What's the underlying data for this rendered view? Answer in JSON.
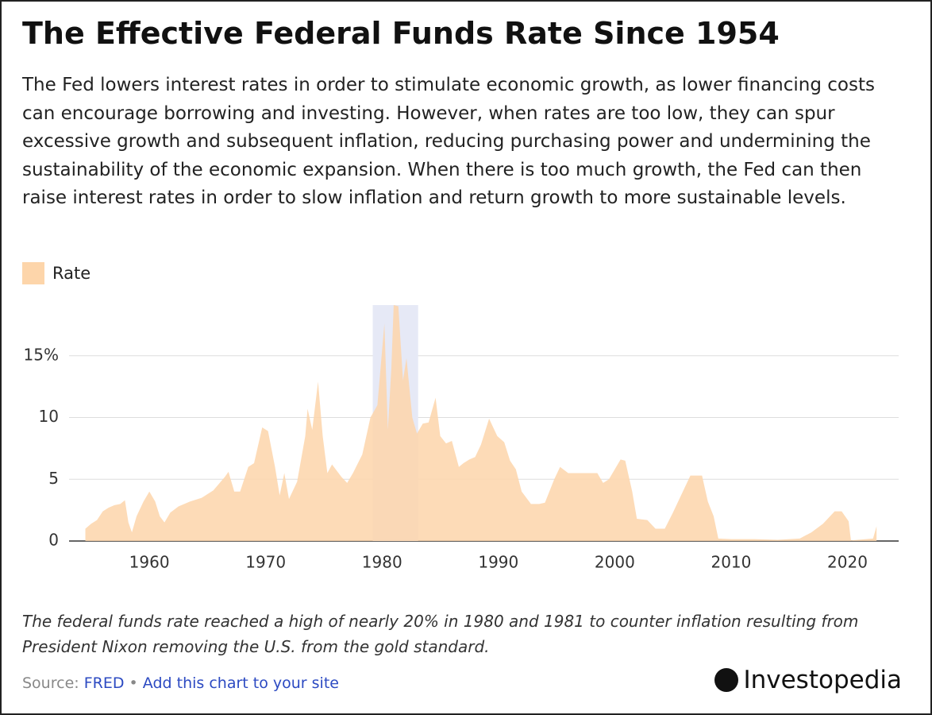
{
  "chart_data": {
    "type": "area",
    "title": "The Effective Federal Funds Rate Since 1954",
    "subtitle": "The Fed lowers interest rates in order to stimulate economic growth, as lower financing costs can encourage borrowing and investing. However, when rates are too low, they can spur excessive growth and subsequent inflation, reducing purchasing power and undermining the sustainability of the economic expansion. When there is too much growth, the Fed can then raise interest rates in order to slow inflation and return growth to more sustainable levels.",
    "note": "The federal funds rate reached a high of nearly 20% in 1980 and 1981 to counter inflation resulting from President Nixon removing the U.S. from the gold standard.",
    "x": [
      1954.5,
      1955.0,
      1955.5,
      1956.0,
      1956.5,
      1957.0,
      1957.5,
      1957.9,
      1958.2,
      1958.5,
      1958.9,
      1959.5,
      1960.0,
      1960.5,
      1960.9,
      1961.3,
      1961.8,
      1962.5,
      1963.5,
      1964.5,
      1965.5,
      1966.5,
      1966.8,
      1967.3,
      1967.8,
      1968.5,
      1969.0,
      1969.7,
      1970.2,
      1970.8,
      1971.2,
      1971.6,
      1972.0,
      1972.7,
      1973.4,
      1973.6,
      1974.0,
      1974.5,
      1974.9,
      1975.3,
      1975.7,
      1976.5,
      1977.0,
      1977.5,
      1978.3,
      1979.0,
      1979.6,
      1980.2,
      1980.5,
      1980.8,
      1981.0,
      1981.4,
      1981.8,
      1982.1,
      1982.6,
      1983.0,
      1983.5,
      1984.0,
      1984.6,
      1985.0,
      1985.5,
      1986.0,
      1986.6,
      1987.0,
      1987.5,
      1988.0,
      1988.5,
      1989.2,
      1989.9,
      1990.5,
      1991.0,
      1991.5,
      1992.0,
      1992.8,
      1993.5,
      1994.0,
      1994.8,
      1995.3,
      1996.0,
      1997.0,
      1998.5,
      1999.0,
      1999.5,
      2000.5,
      2000.9,
      2001.5,
      2001.9,
      2002.8,
      2003.5,
      2004.3,
      2005.0,
      2006.0,
      2006.5,
      2007.5,
      2008.0,
      2008.5,
      2008.9,
      2010.0,
      2012.0,
      2014.0,
      2015.9,
      2016.9,
      2017.9,
      2018.9,
      2019.5,
      2020.1,
      2020.3,
      2022.2,
      2022.5
    ],
    "series": [
      {
        "name": "Rate",
        "color": "#fdd5aa",
        "values": [
          1.0,
          1.4,
          1.7,
          2.4,
          2.7,
          2.9,
          3.0,
          3.3,
          1.5,
          0.7,
          2.0,
          3.2,
          4.0,
          3.2,
          2.0,
          1.5,
          2.3,
          2.8,
          3.2,
          3.5,
          4.1,
          5.2,
          5.6,
          4.0,
          4.0,
          6.0,
          6.3,
          9.2,
          8.9,
          6.0,
          3.7,
          5.5,
          3.4,
          4.8,
          8.5,
          10.7,
          9.0,
          12.9,
          8.5,
          5.5,
          6.2,
          5.2,
          4.7,
          5.5,
          7.0,
          10.0,
          11.0,
          17.6,
          9.0,
          14.0,
          19.1,
          19.0,
          13.0,
          14.8,
          10.0,
          8.7,
          9.5,
          9.6,
          11.6,
          8.5,
          7.9,
          8.1,
          6.0,
          6.3,
          6.6,
          6.8,
          7.8,
          9.9,
          8.5,
          8.0,
          6.5,
          5.8,
          4.0,
          3.0,
          3.0,
          3.1,
          5.0,
          6.0,
          5.5,
          5.5,
          5.5,
          4.7,
          5.0,
          6.6,
          6.5,
          4.0,
          1.8,
          1.7,
          1.0,
          1.0,
          2.3,
          4.3,
          5.3,
          5.3,
          3.2,
          2.0,
          0.2,
          0.15,
          0.15,
          0.1,
          0.2,
          0.7,
          1.4,
          2.4,
          2.4,
          1.6,
          0.05,
          0.2,
          1.2
        ]
      }
    ],
    "highlight_x": [
      1979.2,
      1983.1
    ],
    "highlight_color": "#e6e9f6",
    "xlim": [
      1953.1,
      2024.4
    ],
    "xticks": [
      1960,
      1970,
      1980,
      1990,
      2000,
      2010,
      2020
    ],
    "ylim": [
      0,
      19.1
    ],
    "yticks": [
      0,
      5,
      10,
      {
        "value": 15,
        "label": "15%"
      }
    ],
    "grid": true,
    "legend": "top-left"
  },
  "source": {
    "label": "Source:",
    "link": "FRED",
    "separator": "•",
    "cta": "Add this chart to your site"
  },
  "brand": "Investopedia"
}
